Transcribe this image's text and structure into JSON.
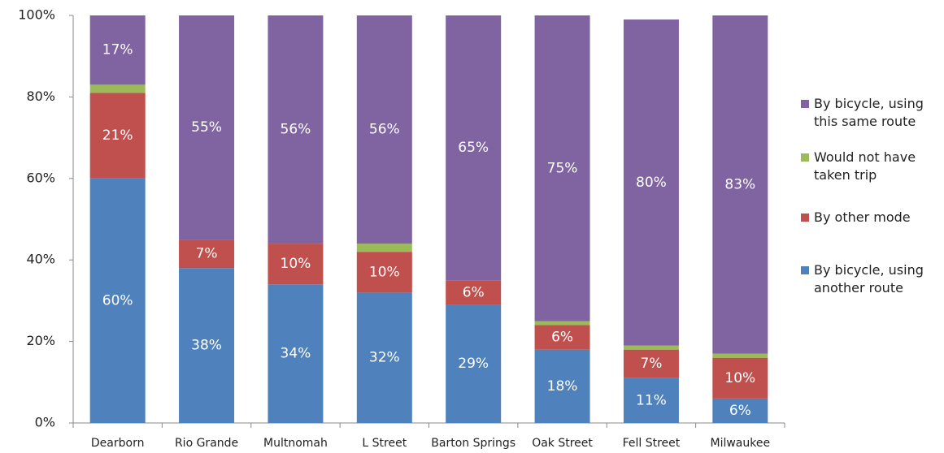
{
  "chart_data": {
    "type": "stacked_bar",
    "categories": [
      "Dearborn",
      "Rio Grande",
      "Multnomah",
      "L Street",
      "Barton Springs",
      "Oak Street",
      "Fell Street",
      "Milwaukee"
    ],
    "series": [
      {
        "name": "By bicycle, using another route",
        "color": "#4f81bd",
        "values": [
          60,
          38,
          34,
          32,
          29,
          18,
          11,
          6
        ],
        "value_labels": [
          "60%",
          "38%",
          "34%",
          "32%",
          "29%",
          "18%",
          "11%",
          "6%"
        ]
      },
      {
        "name": "By other mode",
        "color": "#c0504d",
        "values": [
          21,
          7,
          10,
          10,
          6,
          6,
          7,
          10
        ],
        "value_labels": [
          "21%",
          "7%",
          "10%",
          "10%",
          "6%",
          "6%",
          "7%",
          "10%"
        ]
      },
      {
        "name": "Would not have taken trip",
        "color": "#9bbb59",
        "values": [
          2,
          0,
          0,
          2,
          0,
          1,
          1,
          1
        ]
      },
      {
        "name": "By bicycle, using this same route",
        "color": "#8064a2",
        "values": [
          17,
          55,
          56,
          56,
          65,
          75,
          80,
          83
        ],
        "value_labels": [
          "17%",
          "55%",
          "56%",
          "56%",
          "65%",
          "75%",
          "80%",
          "83%"
        ]
      }
    ],
    "ylim": [
      0,
      100
    ],
    "yticks": [
      {
        "value": 0,
        "label": "0%"
      },
      {
        "value": 20,
        "label": "20%"
      },
      {
        "value": 40,
        "label": "40%"
      },
      {
        "value": 60,
        "label": "60%"
      },
      {
        "value": 80,
        "label": "80%"
      },
      {
        "value": 100,
        "label": "100%"
      }
    ],
    "legend": "right"
  }
}
